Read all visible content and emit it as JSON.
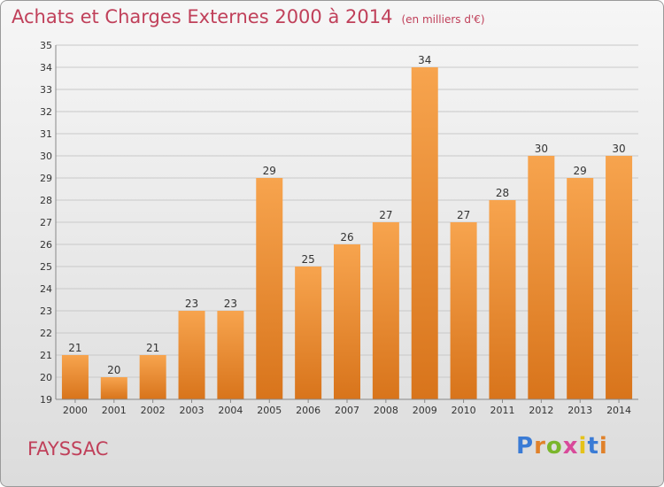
{
  "title": "Achats et Charges Externes 2000 à 2014",
  "unit": "(en milliers d'€)",
  "place": "FAYSSAC",
  "brand": {
    "text": "Proxiti",
    "letter_colors": [
      "#3a7bd5",
      "#e0812a",
      "#7ab62b",
      "#d84a9a",
      "#e5c21a",
      "#3a7bd5",
      "#e0812a"
    ]
  },
  "colors": {
    "bar_light": "#f7a44e",
    "bar_dark": "#d8741b",
    "title": "#c0405a",
    "grid": "#c9c9c9",
    "text": "#333333"
  },
  "chart_data": {
    "type": "bar",
    "categories": [
      "2000",
      "2001",
      "2002",
      "2003",
      "2004",
      "2005",
      "2006",
      "2007",
      "2008",
      "2009",
      "2010",
      "2011",
      "2012",
      "2013",
      "2014"
    ],
    "values": [
      21,
      20,
      21,
      23,
      23,
      29,
      25,
      26,
      27,
      34,
      27,
      28,
      30,
      29,
      30
    ],
    "yticks": [
      19,
      20,
      21,
      22,
      23,
      24,
      25,
      26,
      27,
      28,
      29,
      30,
      31,
      32,
      33,
      34,
      35
    ],
    "ylim": [
      19,
      35
    ],
    "grid": true,
    "data_labels": true
  }
}
